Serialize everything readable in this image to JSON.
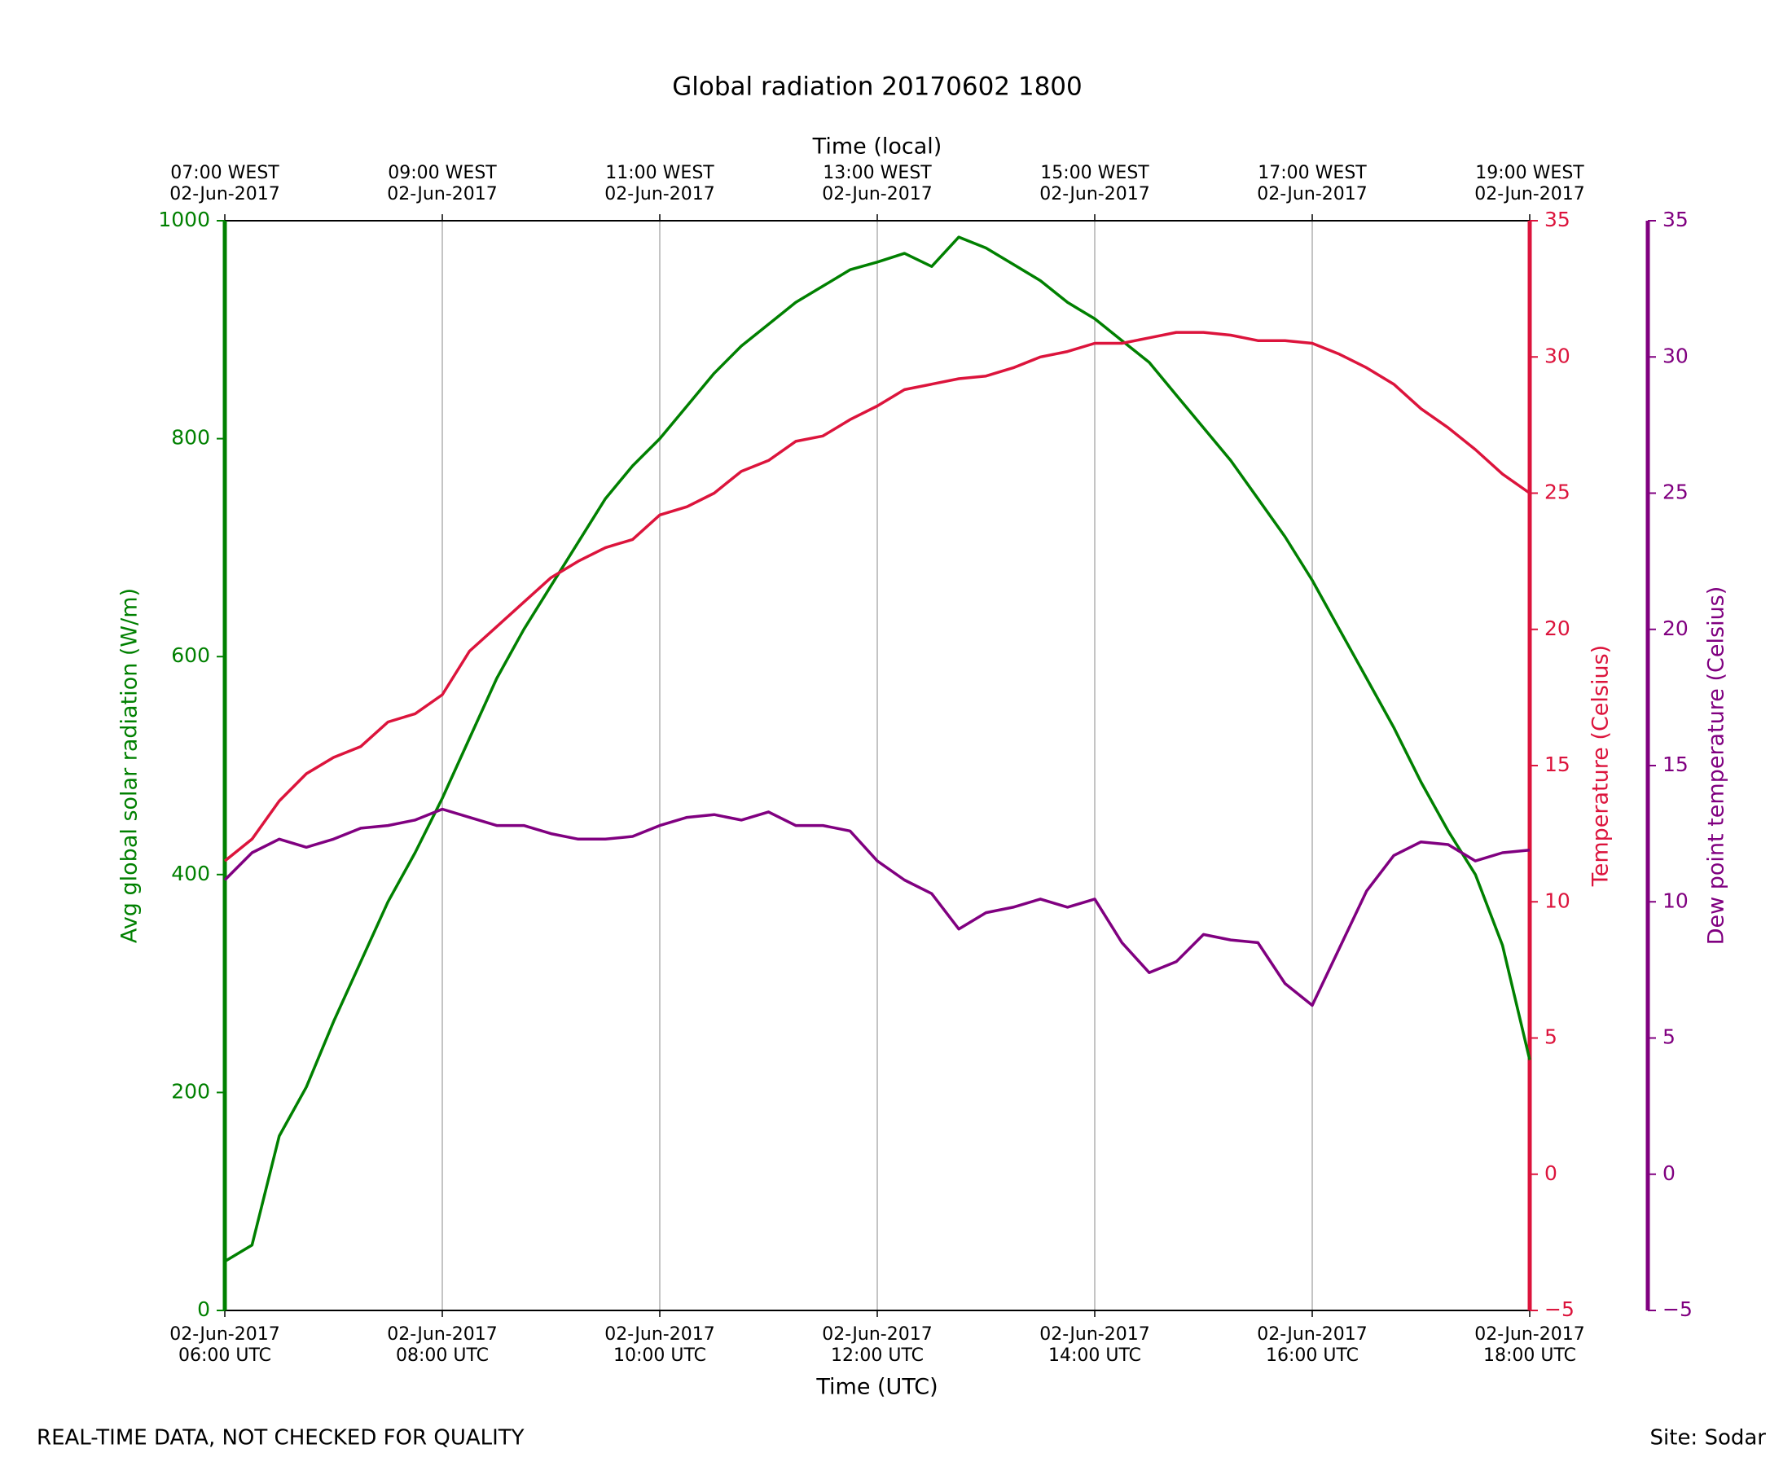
{
  "chart_data": {
    "type": "line",
    "title": "Global radiation 20170602 1800",
    "xlabel": "Time (UTC)",
    "x2label": "Time (local)",
    "ylabel": "Avg global solar radiation (W/m)",
    "y2label": "Temperature (Celsius)",
    "y3label": "Dew point temperature (Celsius)",
    "footer_left": "REAL-TIME DATA, NOT CHECKED FOR QUALITY",
    "footer_right": "Site: Sodar",
    "grid": true,
    "x": [
      6,
      6.25,
      6.5,
      6.75,
      7,
      7.25,
      7.5,
      7.75,
      8,
      8.25,
      8.5,
      8.75,
      9,
      9.25,
      9.5,
      9.75,
      10,
      10.25,
      10.5,
      10.75,
      11,
      11.25,
      11.5,
      11.75,
      12,
      12.25,
      12.5,
      12.75,
      13,
      13.25,
      13.5,
      13.75,
      14,
      14.25,
      14.5,
      14.75,
      15,
      15.25,
      15.5,
      15.75,
      16,
      16.25,
      16.5,
      16.75,
      17,
      17.25,
      17.5,
      17.75,
      18
    ],
    "xlim": [
      6,
      18
    ],
    "xticks": [
      {
        "value": 6,
        "label": [
          "02-Jun-2017",
          "06:00 UTC"
        ]
      },
      {
        "value": 8,
        "label": [
          "02-Jun-2017",
          "08:00 UTC"
        ]
      },
      {
        "value": 10,
        "label": [
          "02-Jun-2017",
          "10:00 UTC"
        ]
      },
      {
        "value": 12,
        "label": [
          "02-Jun-2017",
          "12:00 UTC"
        ]
      },
      {
        "value": 14,
        "label": [
          "02-Jun-2017",
          "14:00 UTC"
        ]
      },
      {
        "value": 16,
        "label": [
          "02-Jun-2017",
          "16:00 UTC"
        ]
      },
      {
        "value": 18,
        "label": [
          "02-Jun-2017",
          "18:00 UTC"
        ]
      }
    ],
    "x2ticks": [
      {
        "value": 6,
        "label": [
          "07:00 WEST",
          "02-Jun-2017"
        ]
      },
      {
        "value": 8,
        "label": [
          "09:00 WEST",
          "02-Jun-2017"
        ]
      },
      {
        "value": 10,
        "label": [
          "11:00 WEST",
          "02-Jun-2017"
        ]
      },
      {
        "value": 12,
        "label": [
          "13:00 WEST",
          "02-Jun-2017"
        ]
      },
      {
        "value": 14,
        "label": [
          "15:00 WEST",
          "02-Jun-2017"
        ]
      },
      {
        "value": 16,
        "label": [
          "17:00 WEST",
          "02-Jun-2017"
        ]
      },
      {
        "value": 18,
        "label": [
          "19:00 WEST",
          "02-Jun-2017"
        ]
      }
    ],
    "ylim": [
      0,
      1000
    ],
    "yticks": [
      0,
      200,
      400,
      600,
      800,
      1000
    ],
    "y2lim": [
      -5,
      35
    ],
    "y2ticks": [
      {
        "value": -5,
        "label": "−5"
      },
      0,
      5,
      10,
      15,
      20,
      25,
      30,
      35
    ],
    "y3lim": [
      -5,
      35
    ],
    "y3ticks": [
      {
        "value": -5,
        "label": "−5"
      },
      0,
      5,
      10,
      15,
      20,
      25,
      30,
      35
    ],
    "y_color": "#008000",
    "y2_color": "#dc143c",
    "y3_color": "#800080",
    "series": [
      {
        "name": "Avg global solar radiation",
        "color": "#008000",
        "axis": "y",
        "values": [
          45,
          60,
          160,
          205,
          265,
          320,
          375,
          420,
          470,
          525,
          580,
          625,
          665,
          705,
          745,
          775,
          800,
          830,
          860,
          885,
          905,
          925,
          940,
          955,
          962,
          970,
          958,
          985,
          975,
          960,
          945,
          925,
          910,
          890,
          870,
          840,
          810,
          780,
          745,
          710,
          670,
          625,
          580,
          535,
          485,
          440,
          400,
          335,
          230
        ]
      },
      {
        "name": "Temperature",
        "color": "#dc143c",
        "axis": "y2",
        "values": [
          11.5,
          12.3,
          13.7,
          14.7,
          15.3,
          15.7,
          16.6,
          16.9,
          17.6,
          19.2,
          20.1,
          21.0,
          21.9,
          22.5,
          23.0,
          23.3,
          24.2,
          24.5,
          25.0,
          25.8,
          26.2,
          26.9,
          27.1,
          27.7,
          28.2,
          28.8,
          29.0,
          29.2,
          29.3,
          29.6,
          30.0,
          30.2,
          30.5,
          30.5,
          30.7,
          30.9,
          30.9,
          30.8,
          30.6,
          30.6,
          30.5,
          30.1,
          29.6,
          29.0,
          28.1,
          27.4,
          26.6,
          25.7,
          25.0
        ]
      },
      {
        "name": "Dew point temperature",
        "color": "#800080",
        "axis": "y3",
        "values": [
          10.8,
          11.8,
          12.3,
          12.0,
          12.3,
          12.7,
          12.8,
          13.0,
          13.4,
          13.1,
          12.8,
          12.8,
          12.5,
          12.3,
          12.3,
          12.4,
          12.8,
          13.1,
          13.2,
          13.0,
          13.3,
          12.8,
          12.8,
          12.6,
          11.5,
          10.8,
          10.3,
          9.0,
          9.6,
          9.8,
          10.1,
          9.8,
          10.1,
          8.5,
          7.4,
          7.8,
          8.8,
          8.6,
          8.5,
          7.0,
          6.2,
          8.3,
          10.4,
          11.7,
          12.2,
          12.1,
          11.5,
          11.8,
          11.9
        ]
      }
    ]
  }
}
